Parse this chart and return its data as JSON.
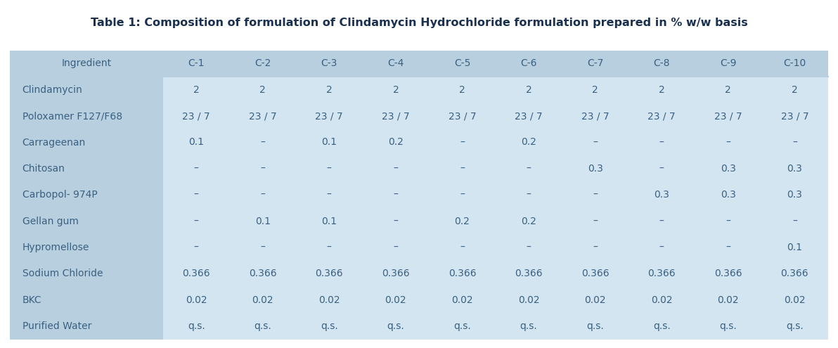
{
  "title": "Table 1: Composition of formulation of Clindamycin Hydrochloride formulation prepared in % w/w basis",
  "columns": [
    "Ingredient",
    "C-1",
    "C-2",
    "C-3",
    "C-4",
    "C-5",
    "C-6",
    "C-7",
    "C-8",
    "C-9",
    "C-10"
  ],
  "rows": [
    [
      "Clindamycin",
      "2",
      "2",
      "2",
      "2",
      "2",
      "2",
      "2",
      "2",
      "2",
      "2"
    ],
    [
      "Poloxamer F127/F68",
      "23 / 7",
      "23 / 7",
      "23 / 7",
      "23 / 7",
      "23 / 7",
      "23 / 7",
      "23 / 7",
      "23 / 7",
      "23 / 7",
      "23 / 7"
    ],
    [
      "Carrageenan",
      "0.1",
      "–",
      "0.1",
      "0.2",
      "–",
      "0.2",
      "–",
      "–",
      "–",
      "–"
    ],
    [
      "Chitosan",
      "–",
      "–",
      "–",
      "–",
      "–",
      "–",
      "0.3",
      "–",
      "0.3",
      "0.3"
    ],
    [
      "Carbopol- 974P",
      "–",
      "–",
      "–",
      "–",
      "–",
      "–",
      "–",
      "0.3",
      "0.3",
      "0.3"
    ],
    [
      "Gellan gum",
      "–",
      "0.1",
      "0.1",
      "–",
      "0.2",
      "0.2",
      "–",
      "–",
      "–",
      "–"
    ],
    [
      "Hypromellose",
      "–",
      "–",
      "–",
      "–",
      "–",
      "–",
      "–",
      "–",
      "–",
      "0.1"
    ],
    [
      "Sodium Chloride",
      "0.366",
      "0.366",
      "0.366",
      "0.366",
      "0.366",
      "0.366",
      "0.366",
      "0.366",
      "0.366",
      "0.366"
    ],
    [
      "BKC",
      "0.02",
      "0.02",
      "0.02",
      "0.02",
      "0.02",
      "0.02",
      "0.02",
      "0.02",
      "0.02",
      "0.02"
    ],
    [
      "Purified Water",
      "q.s.",
      "q.s.",
      "q.s.",
      "q.s.",
      "q.s.",
      "q.s.",
      "q.s.",
      "q.s.",
      "q.s.",
      "q.s."
    ]
  ],
  "bg_outer": "#b8cfe0",
  "bg_data": "#d4e5f2",
  "text_color": "#3a6080",
  "title_color": "#1a3050",
  "header_fontsize": 10,
  "cell_fontsize": 10,
  "title_fontsize": 11.5,
  "col_widths_rel": [
    2.3,
    1.0,
    1.0,
    1.0,
    1.0,
    1.0,
    1.0,
    1.0,
    1.0,
    1.0,
    1.0
  ]
}
